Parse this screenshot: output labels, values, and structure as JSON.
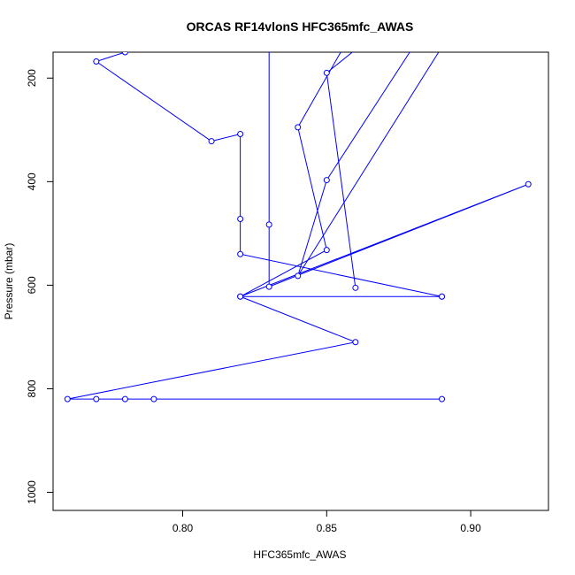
{
  "chart_data": {
    "type": "line",
    "title": "ORCAS RF14vlonS HFC365mfc_AWAS",
    "xlabel": "HFC365mfc_AWAS",
    "ylabel": "Pressure (mbar)",
    "xlim": [
      0.755,
      0.927
    ],
    "ylim": [
      1035,
      150
    ],
    "y_inverted": true,
    "x_ticks": [
      0.8,
      0.85,
      0.9
    ],
    "x_tick_labels": [
      "0.80",
      "0.85",
      "0.90"
    ],
    "y_ticks": [
      200,
      400,
      600,
      800,
      1000
    ],
    "y_tick_labels": [
      "200",
      "400",
      "600",
      "800",
      "1000"
    ],
    "grid": false,
    "legend": "none",
    "series_color": "#0000ff",
    "series": [
      {
        "x": [
          0.89,
          0.79,
          0.78,
          0.77,
          0.76,
          0.86,
          0.82,
          0.89,
          0.89,
          0.82,
          0.82,
          0.82,
          0.81,
          0.77,
          0.78,
          0.8,
          0.82,
          0.83,
          0.83,
          0.83,
          0.92,
          0.82,
          0.85,
          0.84,
          0.86,
          0.89,
          0.84,
          0.85,
          0.88,
          0.87,
          0.85,
          0.86
        ],
        "y": [
          820,
          820,
          820,
          820,
          820,
          710,
          622,
          622,
          622,
          540,
          472,
          308,
          322,
          168,
          150,
          100,
          120,
          140,
          483,
          603,
          405,
          622,
          532,
          295,
          100,
          140,
          582,
          397,
          140,
          100,
          190,
          605
        ]
      }
    ]
  }
}
